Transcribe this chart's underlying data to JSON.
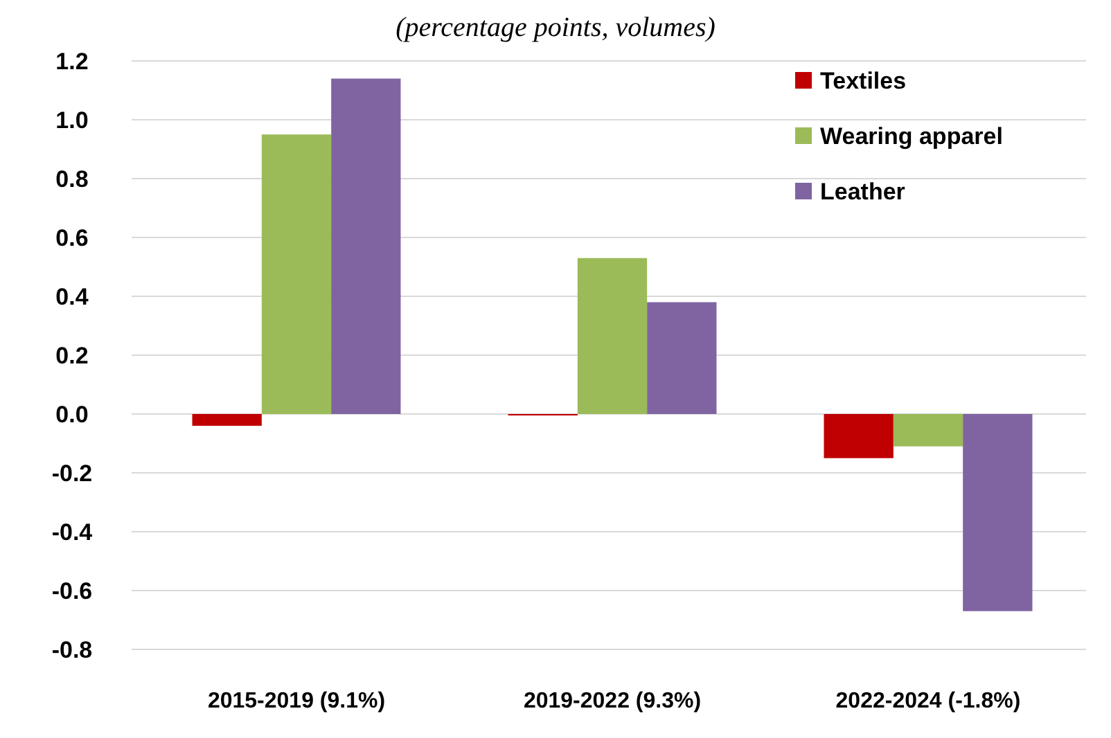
{
  "chart_data": {
    "type": "bar",
    "subtitle": "(percentage points, volumes)",
    "categories": [
      "2015-2019 (9.1%)",
      "2019-2022 (9.3%)",
      "2022-2024 (-1.8%)"
    ],
    "series": [
      {
        "name": "Textiles",
        "color": "#c00000",
        "values": [
          -0.04,
          -0.005,
          -0.15
        ]
      },
      {
        "name": "Wearing apparel",
        "color": "#9bbb59",
        "values": [
          0.95,
          0.53,
          -0.11
        ]
      },
      {
        "name": "Leather",
        "color": "#8064a2",
        "values": [
          1.14,
          0.38,
          -0.67
        ]
      }
    ],
    "ylim": [
      -0.8,
      1.2
    ],
    "yticks": [
      {
        "value": -0.8,
        "label": "-0.8"
      },
      {
        "value": -0.6,
        "label": "-0.6"
      },
      {
        "value": -0.4,
        "label": "-0.4"
      },
      {
        "value": -0.2,
        "label": "-0.2"
      },
      {
        "value": 0,
        "label": "0.0"
      },
      {
        "value": 0.2,
        "label": "0.2"
      },
      {
        "value": 0.4,
        "label": "0.4"
      },
      {
        "value": 0.6,
        "label": "0.6"
      },
      {
        "value": 0.8,
        "label": "0.8"
      },
      {
        "value": 1,
        "label": "1.0"
      },
      {
        "value": 1.2,
        "label": "1.2"
      }
    ],
    "grid": "y",
    "legend": "top right"
  }
}
